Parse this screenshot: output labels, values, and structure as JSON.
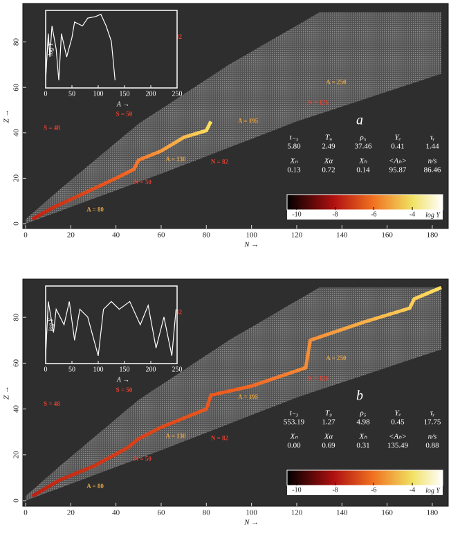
{
  "panels": [
    {
      "label": "a",
      "x_axis": {
        "label": "N →",
        "ticks": [
          0,
          20,
          40,
          60,
          80,
          100,
          120,
          140,
          160,
          180
        ],
        "lim": [
          0,
          184
        ]
      },
      "y_axis": {
        "label": "Z →",
        "ticks": [
          0,
          20,
          40,
          60,
          80
        ],
        "lim": [
          0,
          93
        ]
      },
      "annotations": [
        "S = 48",
        "S = 50",
        "S = 82",
        "N = 50",
        "N = 82",
        "N = 126",
        "A = 80",
        "A = 130",
        "A = 195",
        "A = 250"
      ],
      "parameters": {
        "row1": {
          "headers": [
            "t₋₃",
            "T₉",
            "ρ₅",
            "Yₑ",
            "τᵧ"
          ],
          "values": [
            "5.80",
            "2.49",
            "37.46",
            "0.41",
            "1.44"
          ]
        },
        "row2": {
          "headers": [
            "Xₙ",
            "Xα",
            "Xₕ",
            "<Aₕ>",
            "n/s"
          ],
          "values": [
            "0.13",
            "0.72",
            "0.14",
            "95.87",
            "86.46"
          ]
        }
      },
      "colorbar": {
        "label": "log Y",
        "ticks": [
          -10,
          -8,
          -6,
          -4
        ],
        "lim": [
          -10.5,
          -3.5
        ]
      },
      "inset": {
        "x_axis": {
          "label": "A →",
          "ticks": [
            0,
            50,
            100,
            150,
            200,
            250
          ],
          "lim": [
            0,
            250
          ]
        },
        "y_label": "log Y"
      }
    },
    {
      "label": "b",
      "x_axis": {
        "label": "N →",
        "ticks": [
          0,
          20,
          40,
          60,
          80,
          100,
          120,
          140,
          160,
          180
        ],
        "lim": [
          0,
          184
        ]
      },
      "y_axis": {
        "label": "Z →",
        "ticks": [
          0,
          20,
          40,
          60,
          80
        ],
        "lim": [
          0,
          93
        ]
      },
      "annotations": [
        "S = 48",
        "S = 50",
        "S = 82",
        "N = 50",
        "N = 82",
        "N = 126",
        "A = 80",
        "A = 130",
        "A = 195",
        "A = 250"
      ],
      "parameters": {
        "row1": {
          "headers": [
            "t₋₃",
            "T₉",
            "ρ₅",
            "Yₑ",
            "τᵧ"
          ],
          "values": [
            "553.19",
            "1.27",
            "4.98",
            "0.45",
            "17.75"
          ]
        },
        "row2": {
          "headers": [
            "Xₙ",
            "Xα",
            "Xₕ",
            "<Aₕ>",
            "n/s"
          ],
          "values": [
            "0.00",
            "0.69",
            "0.31",
            "135.49",
            "0.88"
          ]
        }
      },
      "colorbar": {
        "label": "log Y",
        "ticks": [
          -10,
          -8,
          -6,
          -4
        ],
        "lim": [
          -10.5,
          -3.5
        ]
      },
      "inset": {
        "x_axis": {
          "label": "A →",
          "ticks": [
            0,
            50,
            100,
            150,
            200,
            250
          ],
          "lim": [
            0,
            250
          ]
        },
        "y_label": "log Y"
      }
    }
  ]
}
